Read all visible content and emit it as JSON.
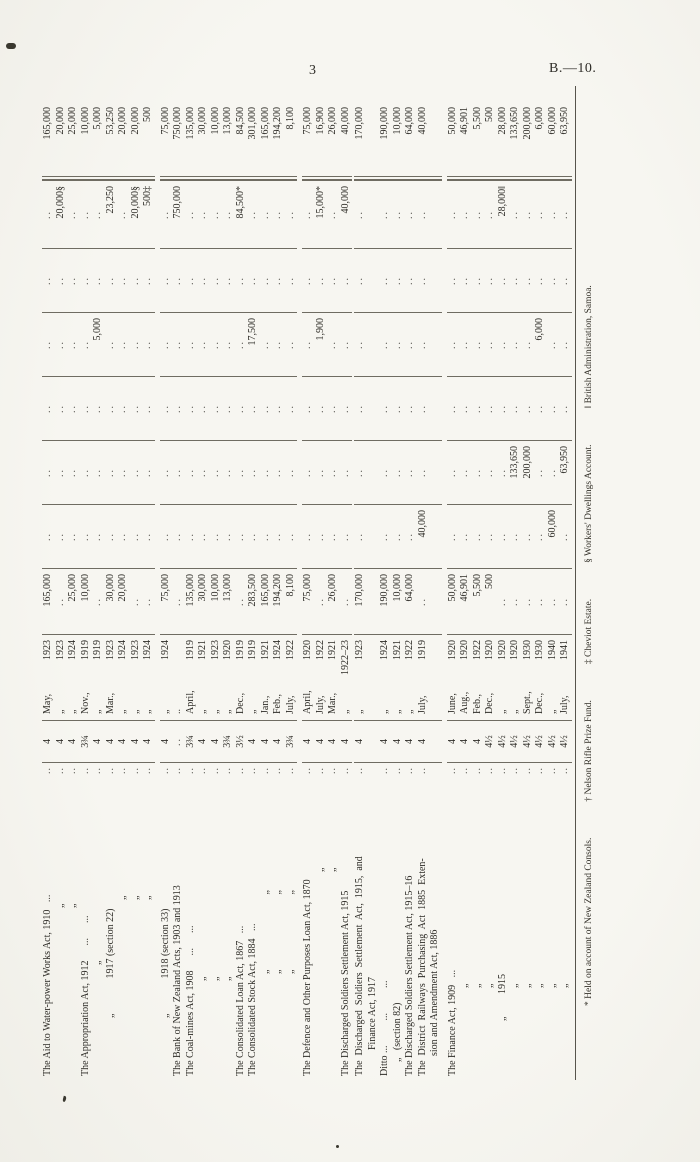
{
  "page": {
    "number": "3",
    "doc_ref": "B.—10."
  },
  "footnotes": [
    "* Held on account of New Zealand Consols.",
    "† Nelson Rifle Prize Fund.",
    "‡ Cheviot Estate.",
    "§ Workers' Dwellings Account.",
    "‖ British Administration, Samoa."
  ],
  "table": {
    "rows": [
      {
        "name": "The Aid to Water-power Works Act, 1910   ...",
        "ind": 2,
        "rate": "4",
        "dm": "May,",
        "dy": "1923",
        "c": [
          "165,000",
          "..",
          "..",
          "..",
          "..",
          "..",
          ".."
        ],
        "total": "165,000"
      },
      {
        "name": "„",
        "ind": 170,
        "rate": "4",
        "dm": "„",
        "dy": "1923",
        "c": [
          "..",
          "..",
          "..",
          "..",
          "..",
          "..",
          "20,000§"
        ],
        "total": "20,000"
      },
      {
        "name": "„",
        "ind": 170,
        "rate": "4",
        "dm": "„",
        "dy": "1924",
        "c": [
          "25,000",
          "..",
          "..",
          "..",
          "..",
          "..",
          ".."
        ],
        "total": "25,000"
      },
      {
        "name": "The Appropriation Act, 1912      ...      ...",
        "ind": 2,
        "rate": "3¾",
        "dm": "Nov.,",
        "dy": "1919",
        "c": [
          "10,000",
          "..",
          "..",
          "..",
          "..",
          "..",
          ".."
        ],
        "total": "10,000"
      },
      {
        "name": "„",
        "ind": 113,
        "rate": "4",
        "dm": "„",
        "dy": "1919",
        "c": [
          "..",
          "..",
          "..",
          "..",
          "5,000",
          "..",
          ".."
        ],
        "total": "5,000"
      },
      {
        "name": "„              1917 (section 22)",
        "ind": 60,
        "rate": "4",
        "dm": "Mar.,",
        "dy": "1923",
        "c": [
          "30,000",
          "..",
          "..",
          "..",
          "..",
          "..",
          "23,250"
        ],
        "total": "53,250"
      },
      {
        "name": "„",
        "ind": 178,
        "rate": "4",
        "dm": "„",
        "dy": "1924",
        "c": [
          "20,000",
          "..",
          "..",
          "..",
          "..",
          "..",
          ".."
        ],
        "total": "20,000"
      },
      {
        "name": "„",
        "ind": 178,
        "rate": "4",
        "dm": "„",
        "dy": "1923",
        "c": [
          "..",
          "..",
          "..",
          "..",
          "..",
          "..",
          "20,000§"
        ],
        "total": "20,000"
      },
      {
        "name": "„",
        "ind": 178,
        "rate": "4",
        "dm": "„",
        "dy": "1924",
        "c": [
          "..",
          "..",
          "..",
          "..",
          "..",
          "..",
          "500‡"
        ],
        "total": "500"
      },
      {
        "name": "„              1918 (section 33)",
        "ind": 60,
        "gap": 5,
        "rate": "4",
        "dm": "„",
        "dy": "1924",
        "c": [
          "75,000",
          "..",
          "..",
          "..",
          "..",
          "..",
          ".."
        ],
        "total": "75,000"
      },
      {
        "name": "The Bank of New Zealand Acts, 1903 and 1913",
        "ind": 2,
        "rate": "..",
        "dm": "..",
        "dy": "",
        "c": [
          "..",
          "..",
          "..",
          "..",
          "..",
          "..",
          "750,000"
        ],
        "total": "750,000"
      },
      {
        "name": "The Coal-mines Act, 1908      ...      ...",
        "ind": 2,
        "rate": "3¾",
        "dm": "April,",
        "dy": "1919",
        "c": [
          "135,000",
          "..",
          "..",
          "..",
          "..",
          "..",
          ".."
        ],
        "total": "135,000"
      },
      {
        "name": "„",
        "ind": 97,
        "rate": "4",
        "dm": "„",
        "dy": "1921",
        "c": [
          "30,000",
          "..",
          "..",
          "..",
          "..",
          "..",
          ".."
        ],
        "total": "30,000"
      },
      {
        "name": "„",
        "ind": 97,
        "rate": "4",
        "dm": "„",
        "dy": "1923",
        "c": [
          "10,000",
          "..",
          "..",
          "..",
          "..",
          "..",
          ".."
        ],
        "total": "10,000"
      },
      {
        "name": "„",
        "ind": 97,
        "rate": "3¾",
        "dm": "„",
        "dy": "1920",
        "c": [
          "13,000",
          "..",
          "..",
          "..",
          "..",
          "..",
          ".."
        ],
        "total": "13,000"
      },
      {
        "name": "The Consolidated Loan Act, 1867   ...",
        "ind": 2,
        "rate": "3½",
        "dm": "Dec.,",
        "dy": "1919",
        "c": [
          "..",
          "..",
          "..",
          "..",
          "..",
          "..",
          "84,500*"
        ],
        "total": "84,500"
      },
      {
        "name": "The Consolidated Stock Act, 1884   ...",
        "ind": 2,
        "rate": "4",
        "dm": "„",
        "dy": "1919",
        "c": [
          "283,500",
          "..",
          "..",
          "..",
          "17,500",
          "..",
          ".."
        ],
        "total": "301,000"
      },
      {
        "name": "„                              „",
        "ind": 104,
        "rate": "4",
        "dm": "Jan.,",
        "dy": "1921",
        "c": [
          "165,000",
          "..",
          "..",
          "..",
          "..",
          "..",
          ".."
        ],
        "total": "165,000"
      },
      {
        "name": "„                              „",
        "ind": 104,
        "rate": "4",
        "dm": "Feb.,",
        "dy": "1924",
        "c": [
          "194,200",
          "..",
          "..",
          "..",
          "..",
          "..",
          ".."
        ],
        "total": "194,200"
      },
      {
        "name": "„                              „",
        "ind": 104,
        "rate": "3¾",
        "dm": "July,",
        "dy": "1922",
        "c": [
          "8,100",
          "..",
          "..",
          "..",
          "..",
          "..",
          ".."
        ],
        "total": "8,100"
      },
      {
        "name": "The Defence and Other Purposes Loan Act, 1870",
        "ind": 2,
        "gap": 5,
        "rate": "4",
        "dm": "April,",
        "dy": "1920",
        "c": [
          "75,000",
          "..",
          "..",
          "..",
          "..",
          "..",
          ".."
        ],
        "total": "75,000"
      },
      {
        "name": "„",
        "ind": 206,
        "rate": "4",
        "dm": "July,",
        "dy": "1922",
        "c": [
          "..",
          "..",
          "..",
          "..",
          "1,900",
          "..",
          "15,000*"
        ],
        "total": "16,900"
      },
      {
        "name": "„",
        "ind": 206,
        "rate": "4",
        "dm": "Mar.,",
        "dy": "1921",
        "c": [
          "26,000",
          "..",
          "..",
          "..",
          "..",
          "..",
          ".."
        ],
        "total": "26,000"
      },
      {
        "name": "The Discharged Soldiers Settlement Act, 1915",
        "ind": 2,
        "rate": "4",
        "dm": "„",
        "dy": "1922–23",
        "c": [
          "..",
          "..",
          "..",
          "..",
          "..",
          "..",
          "40,000"
        ],
        "total": "40,000"
      },
      {
        "name": "The  Discharged  Soldiers  Settlement  Act,  1915,  and",
        "n2": "Finance Act, 1917",
        "ind": 2,
        "ind2": 28,
        "gap": 2,
        "rate": "4",
        "dm": "„",
        "dy": "1923",
        "c": [
          "170,000",
          "..",
          "..",
          "..",
          "..",
          "..",
          ".."
        ],
        "total": "170,000"
      },
      {
        "name": "Ditto ...          ...          ...",
        "ind": 2,
        "rate": "4",
        "dm": "„",
        "dy": "1924",
        "c": [
          "190,000",
          "..",
          "..",
          "..",
          "..",
          "..",
          ".."
        ],
        "total": "190,000"
      },
      {
        "name": "„   (section 82)",
        "ind": 16,
        "rate": "4",
        "dm": "„",
        "dy": "1921",
        "c": [
          "10,000",
          "..",
          "..",
          "..",
          "..",
          "..",
          ".."
        ],
        "total": "10,000"
      },
      {
        "name": "The Discharged Soldiers Settlement Act, 1915–16",
        "ind": 2,
        "rate": "4",
        "dm": "„",
        "dy": "1922",
        "c": [
          "64,000",
          "..",
          "..",
          "..",
          "..",
          "..",
          ".."
        ],
        "total": "64,000"
      },
      {
        "name": "The  District  Railways  Purchasing  Act  1885  Exten-",
        "n2": "sion and Amendment Act, 1886",
        "ind": 2,
        "ind2": 22,
        "rate": "4",
        "dm": "July,",
        "dy": "1919",
        "c": [
          "..",
          "40,000",
          "..",
          "..",
          "..",
          "..",
          ".."
        ],
        "total": "40,000"
      },
      {
        "name": "The Finance Act, 1909   ...",
        "ind": 2,
        "gap": 5,
        "rate": "4",
        "dm": "June,",
        "dy": "1920",
        "c": [
          "50,000",
          "..",
          "..",
          "..",
          "..",
          "..",
          ".."
        ],
        "total": "50,000"
      },
      {
        "name": "„",
        "ind": 90,
        "rate": "4",
        "dm": "Aug.,",
        "dy": "1920",
        "c": [
          "46,901",
          "..",
          "..",
          "..",
          "..",
          "..",
          ".."
        ],
        "total": "46,901"
      },
      {
        "name": "„",
        "ind": 90,
        "rate": "4",
        "dm": "Feb.,",
        "dy": "1922",
        "c": [
          "5,500",
          "..",
          "..",
          "..",
          "..",
          "..",
          ".."
        ],
        "total": "5,500"
      },
      {
        "name": "„",
        "ind": 90,
        "rate": "4½",
        "dm": "Dec.,",
        "dy": "1920",
        "c": [
          "500",
          "..",
          "..",
          "..",
          "..",
          "..",
          ".."
        ],
        "total": "500"
      },
      {
        "name": "„         1915",
        "ind": 57,
        "rate": "4½",
        "dm": "„",
        "dy": "1920",
        "c": [
          "..",
          "..",
          "..",
          "..",
          "..",
          "..",
          "28,000‖"
        ],
        "total": "28,000"
      },
      {
        "name": "„",
        "ind": 90,
        "rate": "4½",
        "dm": "„",
        "dy": "1920",
        "c": [
          "..",
          "..",
          "133,650",
          "..",
          "..",
          "..",
          ".."
        ],
        "total": "133,650"
      },
      {
        "name": "„",
        "ind": 90,
        "rate": "4½",
        "dm": "Sept.,",
        "dy": "1930",
        "c": [
          "..",
          "..",
          "200,000",
          "..",
          "..",
          "..",
          ".."
        ],
        "total": "200,000"
      },
      {
        "name": "„",
        "ind": 90,
        "rate": "4½",
        "dm": "Dec.,",
        "dy": "1930",
        "c": [
          "..",
          "..",
          "..",
          "..",
          "6,000",
          "..",
          ".."
        ],
        "total": "6,000"
      },
      {
        "name": "„",
        "ind": 90,
        "rate": "4½",
        "dm": "„",
        "dy": "1940",
        "c": [
          "..",
          "60,000",
          "..",
          "..",
          "..",
          "..",
          ".."
        ],
        "total": "60,000"
      },
      {
        "name": "„",
        "ind": 90,
        "rate": "4½",
        "dm": "July,",
        "dy": "1941",
        "c": [
          "..",
          "..",
          "63,950",
          "..",
          "..",
          "..",
          ".."
        ],
        "total": "63,950"
      }
    ]
  }
}
